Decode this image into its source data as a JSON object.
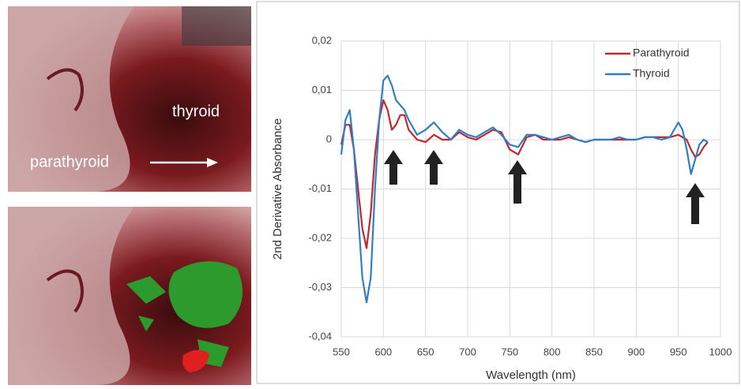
{
  "image_labels": {
    "thyroid": "thyroid",
    "parathyroid": "parathyroid"
  },
  "chart_data": {
    "type": "line",
    "x_label": "Wavelength (nm)",
    "y_label": "2nd Derivative Absorbance",
    "x": [
      550,
      555,
      560,
      565,
      570,
      575,
      580,
      585,
      590,
      595,
      600,
      605,
      610,
      615,
      620,
      625,
      630,
      640,
      650,
      660,
      670,
      680,
      690,
      700,
      710,
      720,
      730,
      740,
      750,
      760,
      770,
      780,
      790,
      800,
      810,
      820,
      830,
      840,
      850,
      860,
      870,
      880,
      890,
      900,
      910,
      920,
      930,
      940,
      950,
      955,
      960,
      965,
      970,
      975,
      980,
      985
    ],
    "series": [
      {
        "name": "Parathyroid",
        "color": "#c0282d",
        "values": [
          -0.001,
          0.003,
          0.003,
          -0.002,
          -0.01,
          -0.018,
          -0.022,
          -0.015,
          -0.003,
          0.004,
          0.008,
          0.006,
          0.002,
          0.003,
          0.005,
          0.005,
          0.002,
          0,
          -0.0005,
          0.001,
          0,
          0,
          0.0015,
          0.0005,
          0,
          0.001,
          0.002,
          0.0015,
          -0.002,
          -0.003,
          0.0005,
          0.001,
          0,
          0,
          0,
          0.0005,
          0,
          -0.0005,
          0,
          0,
          0,
          0,
          0,
          0,
          0.0005,
          0.0005,
          0.0005,
          0.0005,
          0.001,
          0.0005,
          0,
          -0.002,
          -0.0035,
          -0.003,
          -0.0015,
          -0.0005
        ]
      },
      {
        "name": "Thyroid",
        "color": "#2e7fc8",
        "values": [
          -0.003,
          0.004,
          0.006,
          -0.002,
          -0.015,
          -0.028,
          -0.033,
          -0.028,
          -0.01,
          0.004,
          0.012,
          0.013,
          0.011,
          0.008,
          0.007,
          0.006,
          0.004,
          0.001,
          0.002,
          0.0035,
          0.0015,
          0,
          0.002,
          0.001,
          0.0005,
          0.0015,
          0.0025,
          0.001,
          -0.001,
          -0.0015,
          0.001,
          0.001,
          0.0005,
          0,
          0.0005,
          0.001,
          0,
          -0.0005,
          0,
          0,
          0,
          0.0005,
          0,
          0,
          0.0005,
          0.0005,
          0,
          0.0005,
          0.0035,
          0.002,
          -0.002,
          -0.007,
          -0.004,
          -0.001,
          0,
          -0.0005
        ]
      }
    ],
    "xlim": [
      550,
      1000
    ],
    "xticks": [
      550,
      600,
      650,
      700,
      750,
      800,
      850,
      900,
      950,
      1000
    ],
    "ylim": [
      -0.04,
      0.02
    ],
    "yticks": [
      {
        "value": -0.04,
        "label": "-0,04"
      },
      {
        "value": -0.03,
        "label": "-0,03"
      },
      {
        "value": -0.02,
        "label": "-0,02"
      },
      {
        "value": -0.01,
        "label": "-0,01"
      },
      0,
      {
        "value": 0.01,
        "label": "0,01"
      },
      {
        "value": 0.02,
        "label": "0,02"
      }
    ],
    "grid": true,
    "legend": "top-right"
  }
}
